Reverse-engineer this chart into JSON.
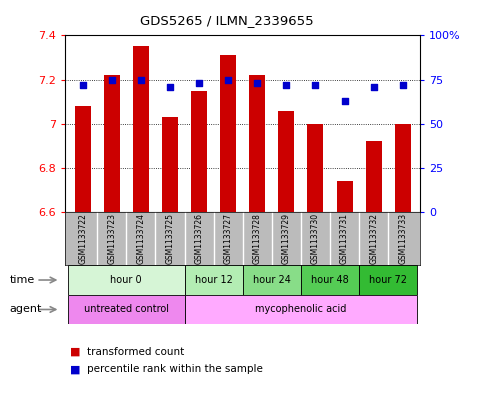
{
  "title": "GDS5265 / ILMN_2339655",
  "samples": [
    "GSM1133722",
    "GSM1133723",
    "GSM1133724",
    "GSM1133725",
    "GSM1133726",
    "GSM1133727",
    "GSM1133728",
    "GSM1133729",
    "GSM1133730",
    "GSM1133731",
    "GSM1133732",
    "GSM1133733"
  ],
  "bar_values": [
    7.08,
    7.22,
    7.35,
    7.03,
    7.15,
    7.31,
    7.22,
    7.06,
    7.0,
    6.74,
    6.92,
    7.0
  ],
  "dot_values": [
    72,
    75,
    75,
    71,
    73,
    75,
    73,
    72,
    72,
    63,
    71,
    72
  ],
  "bar_color": "#cc0000",
  "dot_color": "#0000cc",
  "ylim_left": [
    6.6,
    7.4
  ],
  "ylim_right": [
    0,
    100
  ],
  "yticks_left": [
    6.6,
    6.8,
    7.0,
    7.2,
    7.4
  ],
  "yticks_right": [
    0,
    25,
    50,
    75,
    100
  ],
  "ytick_labels_right": [
    "0",
    "25",
    "50",
    "75",
    "100%"
  ],
  "grid_lines": [
    6.8,
    7.0,
    7.2
  ],
  "time_groups": [
    {
      "label": "hour 0",
      "start": 0,
      "end": 3,
      "color": "#d6f5d6"
    },
    {
      "label": "hour 12",
      "start": 4,
      "end": 5,
      "color": "#b3edb3"
    },
    {
      "label": "hour 24",
      "start": 6,
      "end": 7,
      "color": "#88dd88"
    },
    {
      "label": "hour 48",
      "start": 8,
      "end": 9,
      "color": "#55cc55"
    },
    {
      "label": "hour 72",
      "start": 10,
      "end": 11,
      "color": "#33bb33"
    }
  ],
  "agent_groups": [
    {
      "label": "untreated control",
      "start": 0,
      "end": 3,
      "color": "#ee88ee"
    },
    {
      "label": "mycophenolic acid",
      "start": 4,
      "end": 11,
      "color": "#ffaaff"
    }
  ],
  "legend_bar_label": "transformed count",
  "legend_dot_label": "percentile rank within the sample",
  "sample_bg_color": "#bbbbbb",
  "bar_base": 6.6
}
